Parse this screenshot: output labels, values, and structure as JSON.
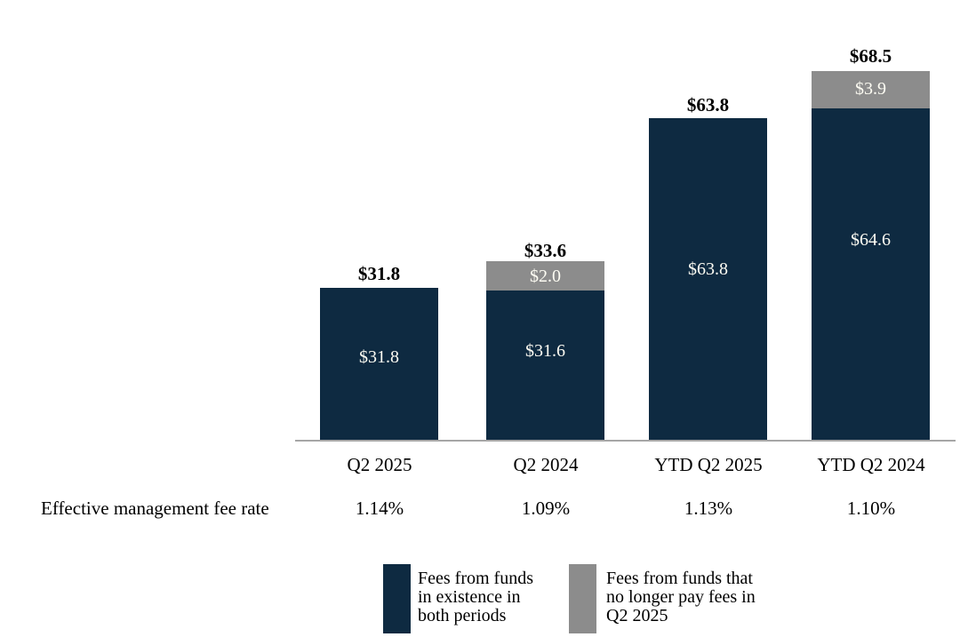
{
  "chart_data": {
    "type": "bar",
    "subtype": "stacked-column",
    "categories": [
      "Q2 2025",
      "Q2 2024",
      "YTD Q2 2025",
      "YTD Q2 2024"
    ],
    "series": [
      {
        "name": "Fees from funds in existence in both periods",
        "color": "#0e2a41",
        "values": [
          31.8,
          31.6,
          63.8,
          64.6
        ],
        "value_labels": [
          "$31.8",
          "$31.6",
          "$63.8",
          "$64.6"
        ]
      },
      {
        "name": "Fees from funds that no longer pay fees in Q2 2025",
        "color": "#8c8c8c",
        "values": [
          0,
          2.0,
          0,
          3.9
        ],
        "value_labels": [
          "",
          "$2.0",
          "",
          "$3.9"
        ]
      }
    ],
    "totals": [
      31.8,
      33.6,
      63.8,
      68.5
    ],
    "total_labels": [
      "$31.8",
      "$33.6",
      "$63.8",
      "$68.5"
    ],
    "fee_rate_row": {
      "label": "Effective management fee rate",
      "values": [
        "1.14%",
        "1.09%",
        "1.13%",
        "1.10%"
      ]
    },
    "legend": [
      {
        "color": "#0e2a41",
        "label_lines": [
          "Fees from funds",
          "in existence in",
          "both periods"
        ]
      },
      {
        "color": "#8c8c8c",
        "label_lines": [
          "Fees from funds that",
          "no longer pay fees in",
          "Q2 2025"
        ]
      }
    ],
    "axis": {
      "baseline_color": "#a6a6a6"
    },
    "legend_position": "bottom",
    "grid": false
  }
}
